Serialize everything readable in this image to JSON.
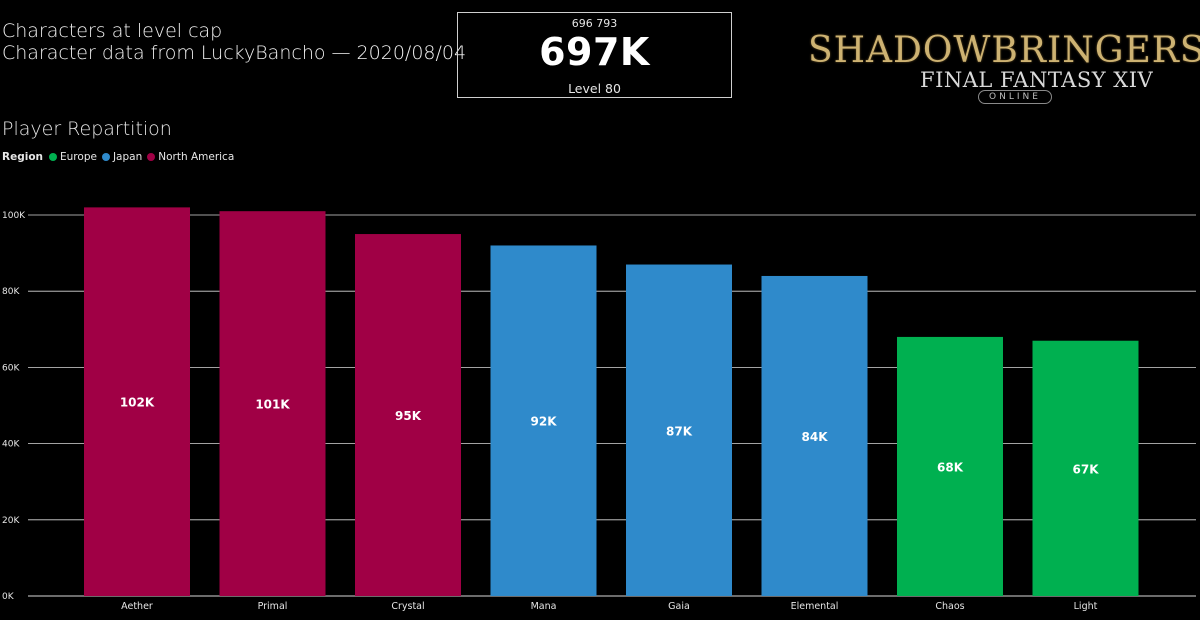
{
  "header": {
    "title_line1": "Characters at level cap",
    "title_line2": "Character data from LuckyBancho — 2020/08/04"
  },
  "kpi": {
    "exact_value": "696 793",
    "value": "697K",
    "label": "Level 80"
  },
  "logo": {
    "main": "SHADOWBRINGERS",
    "sub": "FINAL FANTASY XIV",
    "online": "ONLINE"
  },
  "section_title": "Player Repartition",
  "legend": {
    "title": "Region",
    "items": [
      {
        "label": "Europe",
        "color": "#00B050"
      },
      {
        "label": "Japan",
        "color": "#2F8ACB"
      },
      {
        "label": "North America",
        "color": "#A00045"
      }
    ]
  },
  "chart_data": {
    "type": "bar",
    "title": "Player Repartition",
    "xlabel": "",
    "ylabel": "",
    "ylim": [
      0,
      100000
    ],
    "yticks": [
      0,
      20000,
      40000,
      60000,
      80000,
      100000
    ],
    "ytick_labels": [
      "0K",
      "20K",
      "40K",
      "60K",
      "80K",
      "100K"
    ],
    "grid": true,
    "legend_position": "top-left",
    "categories": [
      "Aether",
      "Primal",
      "Crystal",
      "Mana",
      "Gaia",
      "Elemental",
      "Chaos",
      "Light"
    ],
    "values": [
      102000,
      101000,
      95000,
      92000,
      87000,
      84000,
      68000,
      67000
    ],
    "data_labels": [
      "102K",
      "101K",
      "95K",
      "92K",
      "87K",
      "84K",
      "68K",
      "67K"
    ],
    "regions": [
      "North America",
      "North America",
      "North America",
      "Japan",
      "Japan",
      "Japan",
      "Europe",
      "Europe"
    ],
    "region_colors": {
      "Europe": "#00B050",
      "Japan": "#2F8ACB",
      "North America": "#A00045"
    }
  }
}
